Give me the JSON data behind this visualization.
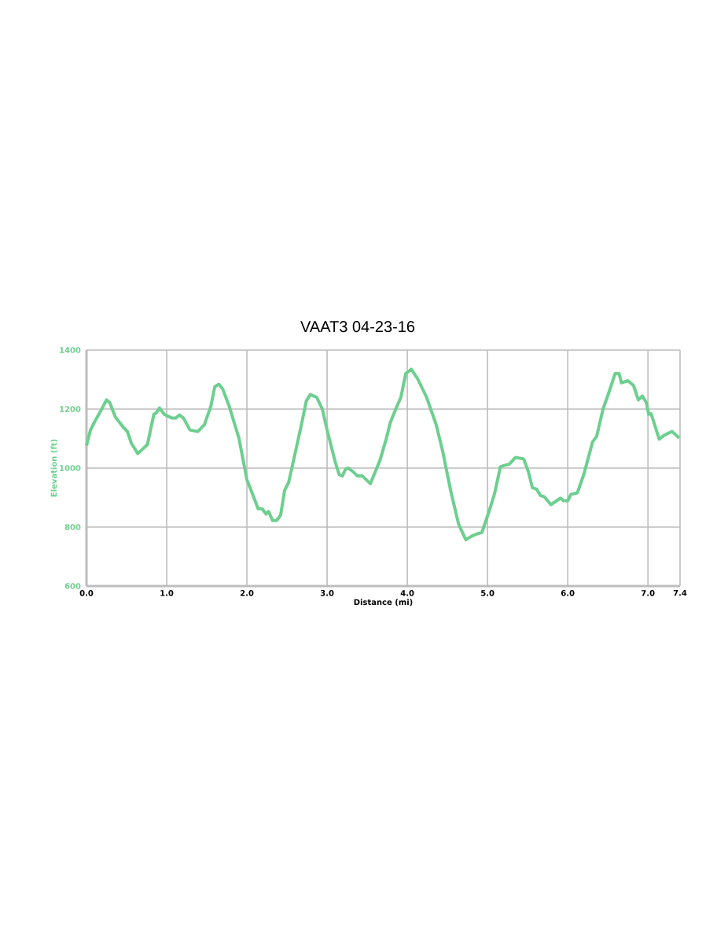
{
  "chart_data": {
    "type": "line",
    "title": "VAAT3 04-23-16",
    "xlabel": "Distance (mi)",
    "ylabel": "Elevation (ft)",
    "xlim": [
      0,
      7.4
    ],
    "ylim": [
      600,
      1400
    ],
    "xticks": [
      {
        "value": 0,
        "label": "0.0"
      },
      {
        "value": 1,
        "label": "1.0"
      },
      {
        "value": 2,
        "label": "2.0"
      },
      {
        "value": 3,
        "label": "3.0"
      },
      {
        "value": 4,
        "label": "4.0"
      },
      {
        "value": 5,
        "label": "5.0"
      },
      {
        "value": 6,
        "label": "6.0"
      },
      {
        "value": 7,
        "label": "7.0"
      },
      {
        "value": 7.4,
        "label": "7.4"
      }
    ],
    "yticks": [
      600,
      800,
      1000,
      1200,
      1400
    ],
    "grid": true,
    "marker": "none",
    "line_style": "solid",
    "x": [
      0.0,
      0.05,
      0.1,
      0.19,
      0.25,
      0.29,
      0.36,
      0.46,
      0.51,
      0.56,
      0.64,
      0.71,
      0.76,
      0.84,
      0.87,
      0.91,
      0.97,
      1.07,
      1.11,
      1.16,
      1.21,
      1.29,
      1.39,
      1.47,
      1.55,
      1.6,
      1.65,
      1.7,
      1.78,
      1.9,
      2.0,
      2.04,
      2.14,
      2.19,
      2.24,
      2.27,
      2.32,
      2.37,
      2.42,
      2.47,
      2.52,
      2.6,
      2.68,
      2.74,
      2.79,
      2.87,
      2.94,
      3.0,
      3.1,
      3.15,
      3.19,
      3.23,
      3.26,
      3.31,
      3.38,
      3.44,
      3.54,
      3.66,
      3.74,
      3.79,
      3.87,
      3.92,
      3.98,
      4.05,
      4.13,
      4.24,
      4.36,
      4.44,
      4.54,
      4.64,
      4.73,
      4.8,
      4.88,
      4.93,
      5.03,
      5.09,
      5.16,
      5.21,
      5.27,
      5.35,
      5.45,
      5.51,
      5.56,
      5.61,
      5.66,
      5.71,
      5.79,
      5.91,
      5.95,
      6.0,
      6.04,
      6.12,
      6.2,
      6.31,
      6.36,
      6.44,
      6.52,
      6.59,
      6.64,
      6.67,
      6.75,
      6.82,
      6.88,
      6.93,
      6.98,
      7.01,
      7.04,
      7.14,
      7.2,
      7.3,
      7.39
    ],
    "series": [
      {
        "color": "#6dcf8f",
        "values": [
          1076,
          1129,
          1156,
          1200,
          1231,
          1222,
          1173,
          1138,
          1124,
          1084,
          1049,
          1067,
          1080,
          1182,
          1187,
          1204,
          1182,
          1169,
          1169,
          1180,
          1169,
          1129,
          1124,
          1147,
          1209,
          1276,
          1284,
          1267,
          1209,
          1102,
          960,
          933,
          862,
          862,
          844,
          853,
          822,
          822,
          840,
          924,
          951,
          1049,
          1147,
          1227,
          1249,
          1240,
          1200,
          1129,
          1022,
          978,
          973,
          996,
          1000,
          991,
          973,
          973,
          947,
          1027,
          1102,
          1156,
          1209,
          1240,
          1320,
          1335,
          1302,
          1240,
          1147,
          1058,
          924,
          809,
          757,
          769,
          778,
          782,
          862,
          916,
          1004,
          1009,
          1013,
          1036,
          1031,
          987,
          933,
          929,
          907,
          902,
          876,
          898,
          889,
          889,
          911,
          916,
          978,
          1089,
          1107,
          1200,
          1262,
          1320,
          1320,
          1289,
          1296,
          1280,
          1231,
          1244,
          1222,
          1182,
          1184,
          1098,
          1111,
          1124,
          1102
        ]
      }
    ]
  }
}
